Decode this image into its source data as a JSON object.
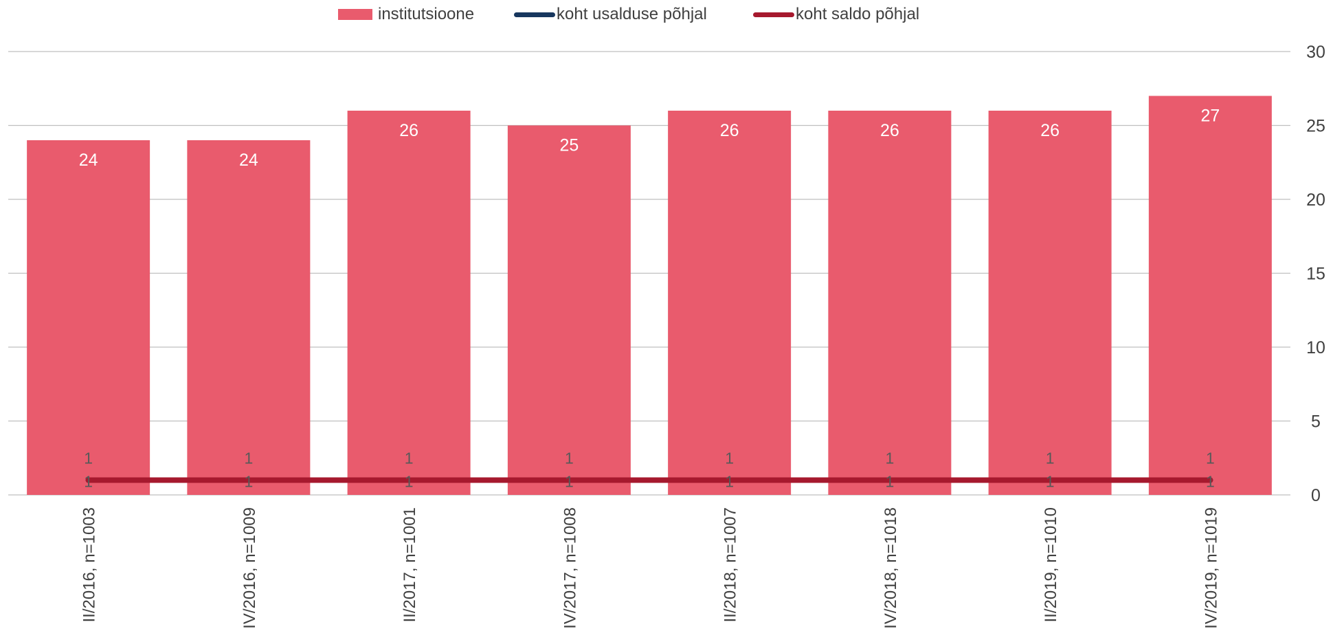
{
  "legend": {
    "items": [
      {
        "label": "institutsioone",
        "color": "#e95b6d",
        "kind": "bar"
      },
      {
        "label": "koht usalduse põhjal",
        "color": "#17375e",
        "kind": "line"
      },
      {
        "label": "koht saldo põhjal",
        "color": "#a6192e",
        "kind": "line"
      }
    ]
  },
  "chart_data": {
    "type": "bar",
    "categories": [
      "II/2016, n=1003",
      "IV/2016, n=1009",
      "II/2017, n=1001",
      "IV/2017, n=1008",
      "II/2018, n=1007",
      "IV/2018, n=1018",
      "II/2019, n=1010",
      "IV/2019, n=1019"
    ],
    "series": [
      {
        "name": "institutsioone",
        "type": "bar",
        "color": "#e95b6d",
        "values": [
          24,
          24,
          26,
          25,
          26,
          26,
          26,
          27
        ],
        "labels": [
          "24",
          "24",
          "26",
          "25",
          "26",
          "26",
          "26",
          "27"
        ]
      },
      {
        "name": "koht usalduse põhjal",
        "type": "line",
        "color": "#17375e",
        "values": [
          1,
          1,
          1,
          1,
          1,
          1,
          1,
          1
        ],
        "labels": [
          "1",
          "1",
          "1",
          "1",
          "1",
          "1",
          "1",
          "1"
        ]
      },
      {
        "name": "koht saldo põhjal",
        "type": "line",
        "color": "#a6192e",
        "values": [
          1,
          1,
          1,
          1,
          1,
          1,
          1,
          1
        ],
        "labels": [
          "1",
          "1",
          "1",
          "1",
          "1",
          "1",
          "1",
          "1"
        ]
      }
    ],
    "yaxis": {
      "position": "right",
      "ylim": [
        0,
        30
      ],
      "ticks": [
        "0",
        "5",
        "10",
        "15",
        "20",
        "25",
        "30"
      ]
    },
    "grid": true,
    "legend_position": "top"
  }
}
